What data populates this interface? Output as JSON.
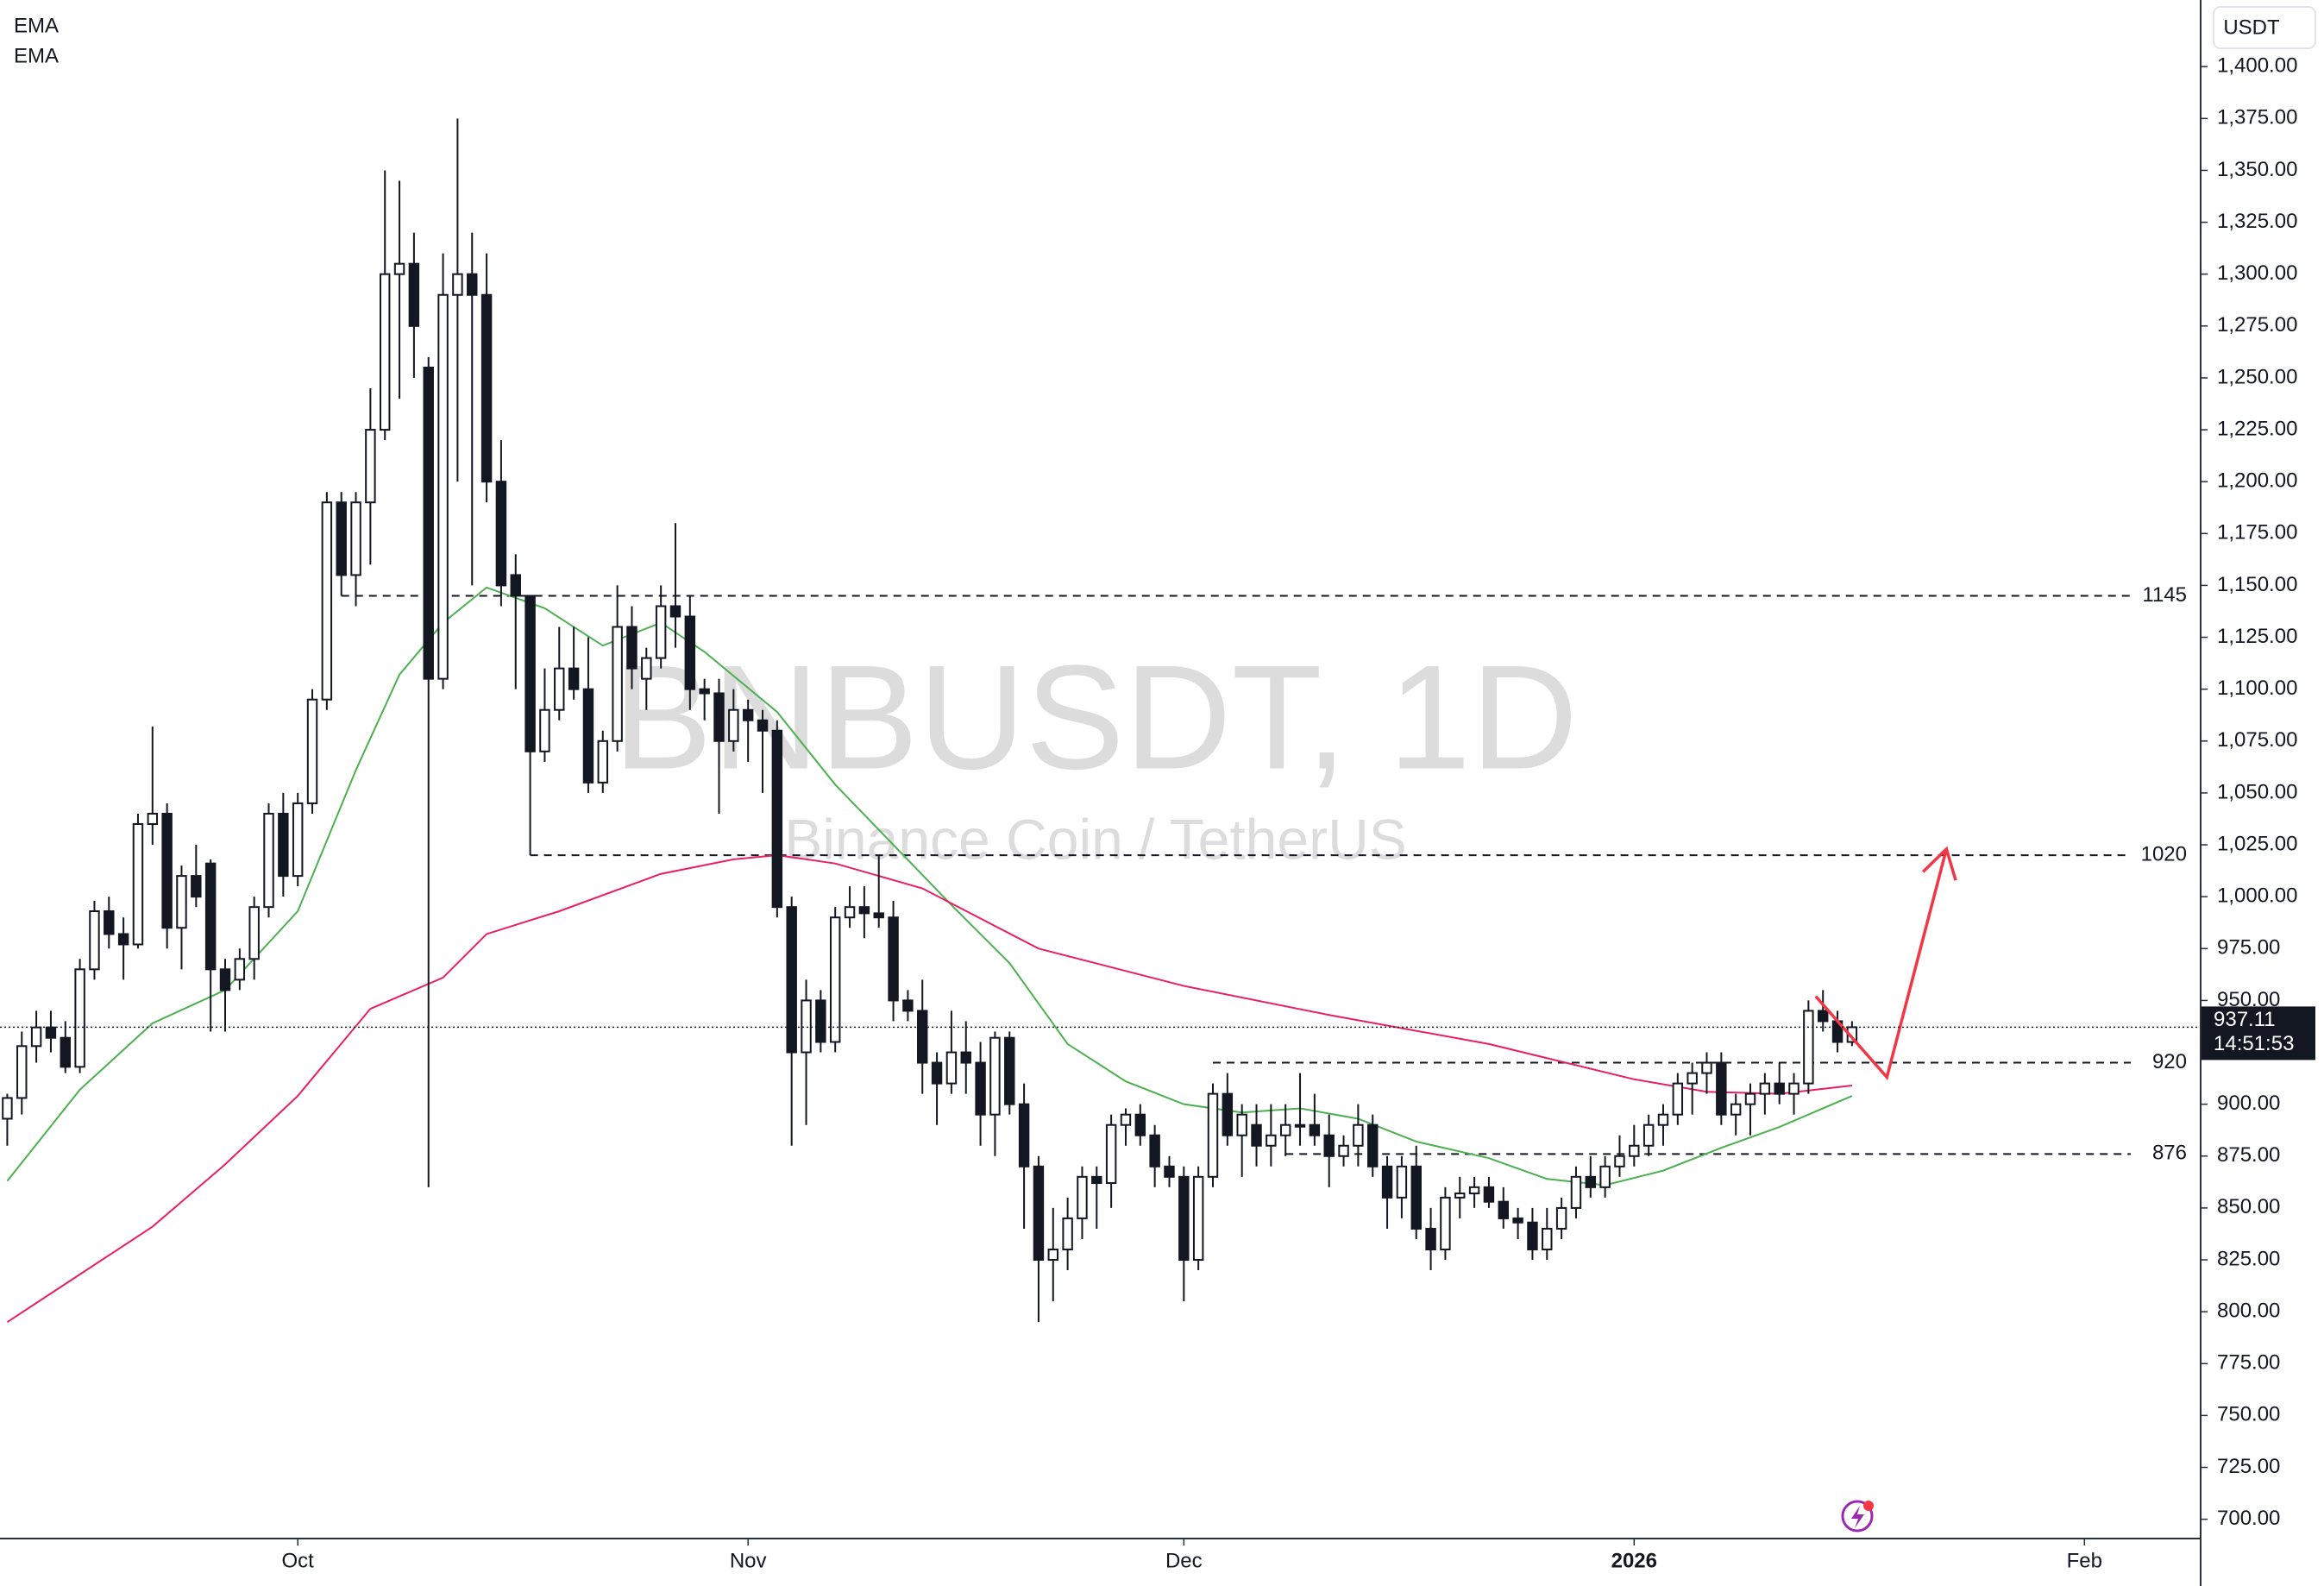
{
  "chart_data": {
    "type": "candlestick",
    "title": "BNBUSDT, 1D",
    "subtitle": "Binance Coin / TetherUS",
    "currency": "USDT",
    "countdown": "14:51:53",
    "open": [
      893,
      903,
      928,
      937,
      932,
      918,
      965,
      993,
      982,
      977,
      1035,
      1040,
      985,
      1010,
      1016,
      965,
      960,
      970,
      995,
      1040,
      1010,
      1045,
      1095,
      1190,
      1155,
      1190,
      1225,
      1300,
      1305,
      1255,
      1105,
      1290,
      1300,
      1290,
      1200,
      1155,
      1145,
      1070,
      1090,
      1110,
      1100,
      1055,
      1075,
      1130,
      1105,
      1115,
      1140,
      1135,
      1100,
      1098,
      1075,
      1090,
      1085,
      1080,
      995,
      925,
      950,
      930,
      990,
      995,
      992,
      990,
      950,
      945,
      920,
      910,
      925,
      920,
      895,
      932,
      900,
      870,
      825,
      830,
      845,
      865,
      862,
      890,
      895,
      885,
      870,
      865,
      825,
      865,
      905,
      885,
      890,
      880,
      885,
      890,
      890,
      885,
      875,
      880,
      890,
      870,
      855,
      870,
      840,
      830,
      855,
      857,
      860,
      853,
      845,
      843,
      830,
      840,
      850,
      865,
      860,
      870,
      875,
      880,
      890,
      895,
      910,
      915,
      920,
      895,
      900,
      905,
      910,
      905,
      910,
      945,
      940,
      930
    ],
    "high": [
      905,
      935,
      945,
      945,
      940,
      970,
      998,
      1000,
      990,
      1040,
      1082,
      1045,
      1015,
      1025,
      1018,
      970,
      975,
      1000,
      1045,
      1050,
      1050,
      1100,
      1195,
      1195,
      1195,
      1245,
      1350,
      1345,
      1320,
      1260,
      1310,
      1375,
      1320,
      1310,
      1220,
      1165,
      1145,
      1110,
      1130,
      1130,
      1125,
      1080,
      1150,
      1140,
      1120,
      1150,
      1180,
      1145,
      1105,
      1105,
      1100,
      1095,
      1090,
      1085,
      1000,
      960,
      955,
      995,
      1005,
      1005,
      1020,
      998,
      955,
      960,
      925,
      945,
      940,
      930,
      935,
      935,
      910,
      875,
      850,
      855,
      870,
      870,
      895,
      898,
      900,
      890,
      875,
      870,
      870,
      910,
      915,
      900,
      900,
      900,
      900,
      915,
      905,
      895,
      885,
      900,
      895,
      875,
      875,
      880,
      850,
      860,
      865,
      865,
      865,
      860,
      850,
      850,
      850,
      855,
      870,
      875,
      875,
      885,
      890,
      895,
      900,
      915,
      920,
      925,
      925,
      905,
      910,
      915,
      920,
      915,
      950,
      955,
      945,
      940
    ],
    "low": [
      880,
      895,
      920,
      925,
      915,
      915,
      960,
      975,
      960,
      975,
      1025,
      975,
      965,
      995,
      935,
      935,
      955,
      960,
      990,
      1000,
      1005,
      1040,
      1090,
      1145,
      1140,
      1160,
      1220,
      1240,
      1250,
      860,
      1100,
      1200,
      1150,
      1190,
      1140,
      1100,
      1020,
      1065,
      1085,
      1095,
      1050,
      1050,
      1070,
      1100,
      1090,
      1110,
      1120,
      1090,
      1085,
      1040,
      1070,
      1065,
      1050,
      990,
      880,
      890,
      925,
      925,
      985,
      980,
      985,
      940,
      940,
      905,
      890,
      905,
      905,
      880,
      875,
      895,
      840,
      795,
      805,
      820,
      835,
      840,
      850,
      880,
      880,
      860,
      860,
      805,
      820,
      860,
      880,
      865,
      870,
      870,
      875,
      880,
      880,
      860,
      870,
      870,
      865,
      840,
      845,
      835,
      820,
      825,
      845,
      850,
      850,
      840,
      835,
      825,
      825,
      835,
      845,
      855,
      855,
      865,
      870,
      875,
      880,
      890,
      895,
      905,
      890,
      885,
      885,
      895,
      900,
      895,
      905,
      935,
      925,
      928
    ],
    "close": [
      903,
      928,
      937,
      932,
      918,
      965,
      993,
      982,
      977,
      1035,
      1040,
      985,
      1010,
      1000,
      965,
      955,
      970,
      995,
      1040,
      1010,
      1045,
      1095,
      1190,
      1155,
      1190,
      1225,
      1300,
      1305,
      1275,
      1105,
      1290,
      1300,
      1290,
      1200,
      1150,
      1145,
      1070,
      1090,
      1110,
      1100,
      1055,
      1075,
      1130,
      1110,
      1115,
      1140,
      1135,
      1100,
      1098,
      1075,
      1090,
      1085,
      1080,
      995,
      925,
      950,
      930,
      990,
      995,
      992,
      990,
      950,
      945,
      920,
      910,
      925,
      920,
      895,
      932,
      900,
      870,
      825,
      830,
      845,
      865,
      862,
      890,
      895,
      885,
      870,
      865,
      825,
      865,
      905,
      885,
      895,
      880,
      885,
      890,
      890,
      885,
      875,
      880,
      890,
      870,
      855,
      870,
      840,
      830,
      855,
      857,
      860,
      853,
      845,
      843,
      830,
      840,
      850,
      865,
      860,
      870,
      875,
      880,
      890,
      895,
      910,
      915,
      920,
      895,
      900,
      905,
      910,
      905,
      910,
      945,
      940,
      930,
      937.11
    ],
    "lines": [
      {
        "name": "EMA",
        "color": "#4caf50",
        "x": [
          0,
          5,
          10,
          15,
          20,
          24,
          27,
          30,
          33,
          37,
          41,
          45,
          48,
          53,
          57,
          61,
          65,
          69,
          73,
          77,
          81,
          85,
          89,
          93,
          97,
          102,
          106,
          110,
          114,
          118,
          122,
          127
        ],
        "values": [
          863,
          907,
          939,
          955,
          993,
          1061,
          1107,
          1132,
          1149,
          1139,
          1121,
          1132,
          1118,
          1089,
          1054,
          1025,
          996,
          968,
          929,
          911,
          900,
          896,
          898,
          893,
          882,
          874,
          864,
          861,
          868,
          879,
          889,
          904
        ]
      },
      {
        "name": "EMA",
        "color": "#e91e63",
        "x": [
          0,
          5,
          10,
          15,
          20,
          25,
          30,
          33,
          38,
          45,
          50,
          53,
          57,
          63,
          71,
          81,
          91,
          102,
          112,
          117,
          122,
          127
        ],
        "values": [
          795,
          818,
          841,
          871,
          904,
          946,
          961,
          982,
          993,
          1011,
          1018,
          1020,
          1016,
          1004,
          975,
          957,
          943,
          929,
          912,
          906,
          905,
          909
        ]
      }
    ],
    "levels": [
      {
        "value": 1145,
        "x": 23
      },
      {
        "value": 1020,
        "x": 36
      },
      {
        "value": 920,
        "x": 83
      },
      {
        "value": 876,
        "x": 88
      }
    ],
    "drawing": {
      "color": "#f23645",
      "x": [
        124.5,
        129.4,
        133.5
      ],
      "values": [
        952,
        913,
        1023
      ]
    },
    "xlim": [
      -0.5,
      151
    ],
    "ylim": [
      690.7,
      1432.1
    ],
    "xticks": [
      {
        "value": 20,
        "label": "Oct"
      },
      {
        "value": 51,
        "label": "Nov"
      },
      {
        "value": 81,
        "label": "Dec"
      },
      {
        "value": 112,
        "label": "2026"
      },
      {
        "value": 143,
        "label": "Feb"
      }
    ],
    "yticks": [
      {
        "value": 700,
        "label": "700.00"
      },
      {
        "value": 725,
        "label": "725.00"
      },
      {
        "value": 750,
        "label": "750.00"
      },
      {
        "value": 775,
        "label": "775.00"
      },
      {
        "value": 800,
        "label": "800.00"
      },
      {
        "value": 825,
        "label": "825.00"
      },
      {
        "value": 850,
        "label": "850.00"
      },
      {
        "value": 875,
        "label": "875.00"
      },
      {
        "value": 900,
        "label": "900.00"
      },
      {
        "value": 925,
        "label": "925.00"
      },
      {
        "value": 950,
        "label": "950.00"
      },
      {
        "value": 975,
        "label": "975.00"
      },
      {
        "value": 1000,
        "label": "1,000.00"
      },
      {
        "value": 1025,
        "label": "1,025.00"
      },
      {
        "value": 1050,
        "label": "1,050.00"
      },
      {
        "value": 1075,
        "label": "1,075.00"
      },
      {
        "value": 1100,
        "label": "1,100.00"
      },
      {
        "value": 1125,
        "label": "1,125.00"
      },
      {
        "value": 1150,
        "label": "1,150.00"
      },
      {
        "value": 1175,
        "label": "1,175.00"
      },
      {
        "value": 1200,
        "label": "1,200.00"
      },
      {
        "value": 1225,
        "label": "1,225.00"
      },
      {
        "value": 1250,
        "label": "1,250.00"
      },
      {
        "value": 1275,
        "label": "1,275.00"
      },
      {
        "value": 1300,
        "label": "1,300.00"
      },
      {
        "value": 1325,
        "label": "1,325.00"
      },
      {
        "value": 1350,
        "label": "1,350.00"
      },
      {
        "value": 1375,
        "label": "1,375.00"
      },
      {
        "value": 1400,
        "label": "1,400.00"
      }
    ]
  }
}
